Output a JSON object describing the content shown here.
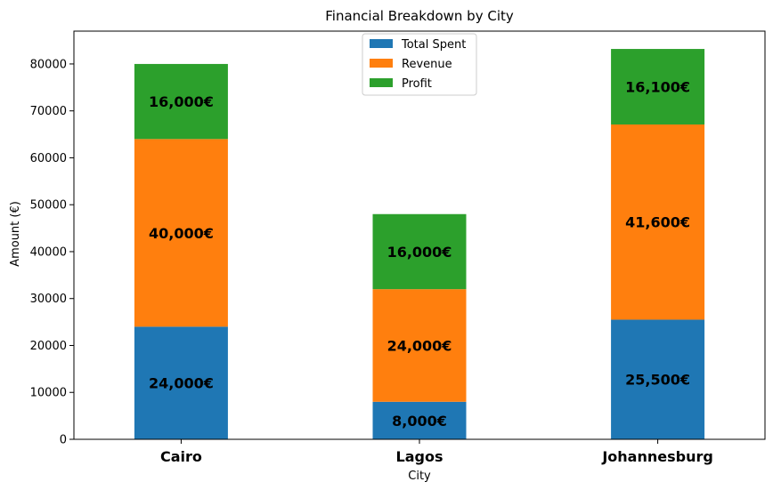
{
  "chart_data": {
    "type": "bar",
    "stacked": true,
    "title": "Financial Breakdown by City",
    "xlabel": "City",
    "ylabel": "Amount (€)",
    "categories": [
      "Cairo",
      "Lagos",
      "Johannesburg"
    ],
    "series": [
      {
        "name": "Total Spent",
        "color": "#1f77b4",
        "values": [
          24000,
          8000,
          25500
        ],
        "labels": [
          "24,000€",
          "8,000€",
          "25,500€"
        ]
      },
      {
        "name": "Revenue",
        "color": "#ff7f0e",
        "values": [
          40000,
          24000,
          41600
        ],
        "labels": [
          "40,000€",
          "24,000€",
          "41,600€"
        ]
      },
      {
        "name": "Profit",
        "color": "#2ca02c",
        "values": [
          16000,
          16000,
          16100
        ],
        "labels": [
          "16,000€",
          "16,000€",
          "16,100€"
        ]
      }
    ],
    "ylim": [
      0,
      87000
    ],
    "yticks": [
      0,
      10000,
      20000,
      30000,
      40000,
      50000,
      60000,
      70000,
      80000
    ],
    "ytick_labels": [
      "0",
      "10000",
      "20000",
      "30000",
      "40000",
      "50000",
      "60000",
      "70000",
      "80000"
    ],
    "grid": false,
    "legend": {
      "position": "upper-center"
    }
  }
}
